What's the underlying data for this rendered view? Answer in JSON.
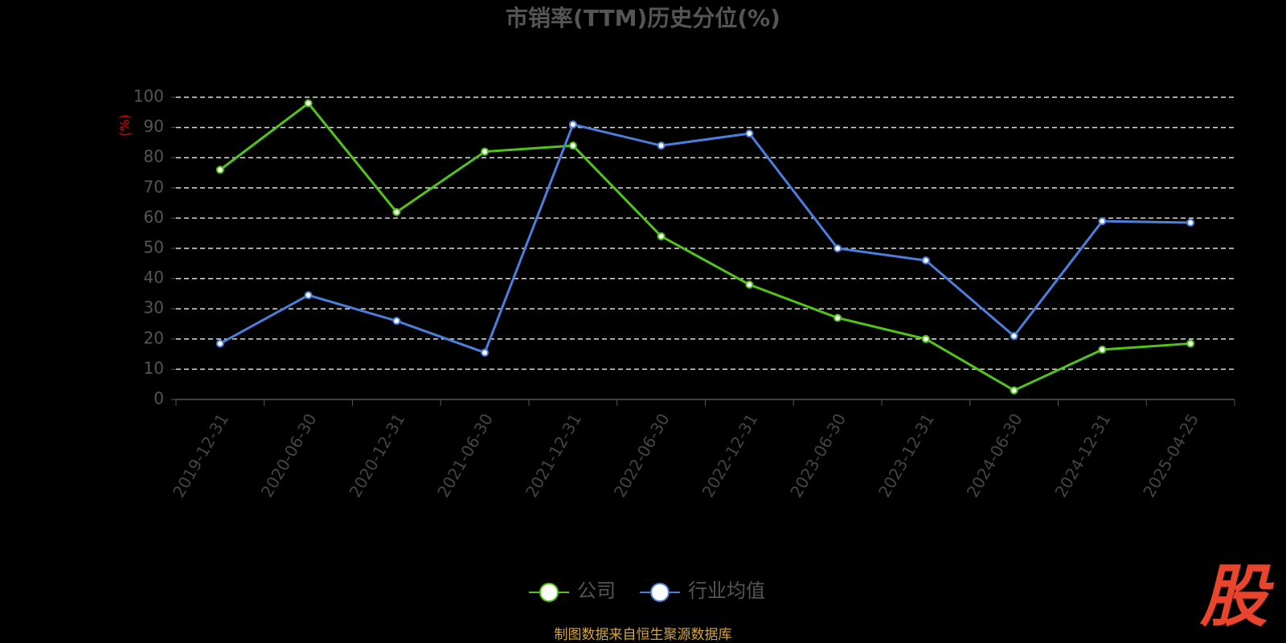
{
  "chart_data": {
    "type": "line",
    "title": "市销率(TTM)历史分位(%)",
    "y_label": "(%)",
    "categories": [
      "2019-12-31",
      "2020-06-30",
      "2020-12-31",
      "2021-06-30",
      "2021-12-31",
      "2022-06-30",
      "2022-12-31",
      "2023-06-30",
      "2023-12-31",
      "2024-06-30",
      "2024-12-31",
      "2025-04-25"
    ],
    "series": [
      {
        "name": "公司",
        "color": "#52c41a",
        "values": [
          76,
          98,
          62,
          82,
          84,
          54,
          38,
          27,
          20,
          3,
          16.5,
          18.5
        ]
      },
      {
        "name": "行业均值",
        "color": "#4a7fdc",
        "values": [
          18.5,
          34.5,
          26,
          15.5,
          91,
          84,
          88,
          50,
          46,
          21,
          59,
          58.5
        ]
      }
    ],
    "ylim": [
      0,
      100
    ],
    "yticks": [
      0,
      10,
      20,
      30,
      40,
      50,
      60,
      70,
      80,
      90,
      100
    ],
    "grid": true
  },
  "footer": {
    "source": "制图数据来自恒生聚源数据库",
    "watermark": "股"
  }
}
